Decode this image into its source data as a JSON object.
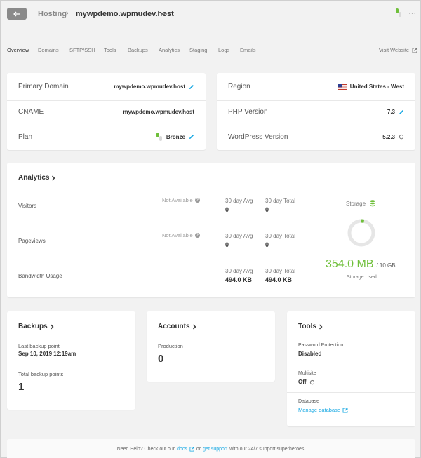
{
  "header": {
    "hosting": "Hosting",
    "sep": "›",
    "site": "mywpdemo.wpmudev.host",
    "more": "···"
  },
  "tabs": [
    "Overview",
    "Domains",
    "SFTP/SSH",
    "Tools",
    "Backups",
    "Analytics",
    "Staging",
    "Logs",
    "Emails"
  ],
  "visit_website": "Visit Website",
  "left_info": {
    "primary_domain_label": "Primary Domain",
    "primary_domain_value": "mywpdemo.wpmudev.host",
    "cname_label": "CNAME",
    "cname_value": "mywpdemo.wpmudev.host",
    "plan_label": "Plan",
    "plan_value": "Bronze"
  },
  "right_info": {
    "region_label": "Region",
    "region_value": "United States - West",
    "php_label": "PHP Version",
    "php_value": "7.3",
    "wp_label": "WordPress Version",
    "wp_value": "5.2.3"
  },
  "analytics": {
    "title": "Analytics",
    "not_available": "Not Available",
    "avg_label": "30 day Avg",
    "total_label": "30 day Total",
    "rows": [
      {
        "label": "Visitors",
        "avg": "0",
        "total": "0"
      },
      {
        "label": "Pageviews",
        "avg": "0",
        "total": "0"
      },
      {
        "label": "Bandwidth Usage",
        "avg": "494.0 KB",
        "total": "494.0 KB"
      }
    ],
    "storage_label": "Storage",
    "storage_used_value": "354.0 MB",
    "storage_total": "/ 10 GB",
    "storage_used_label": "Storage Used",
    "storage_fraction": 0.035
  },
  "backups": {
    "title": "Backups",
    "last_label": "Last backup point",
    "last_value": "Sep 10, 2019 12:19am",
    "total_label": "Total backup points",
    "total_value": "1"
  },
  "accounts": {
    "title": "Accounts",
    "production_label": "Production",
    "production_value": "0"
  },
  "tools": {
    "title": "Tools",
    "pw_label": "Password Protection",
    "pw_value": "Disabled",
    "multisite_label": "Multisite",
    "multisite_value": "Off",
    "db_label": "Database",
    "db_link": "Manage database"
  },
  "footer": {
    "pre": "Need Help? Check out our",
    "docs": "docs",
    "or": "or",
    "support": "get support",
    "post": "with our 24/7 support superheroes."
  },
  "colors": {
    "accent": "#17a8e3",
    "green": "#6fbf3a",
    "back_button": "#8a8a8a"
  }
}
